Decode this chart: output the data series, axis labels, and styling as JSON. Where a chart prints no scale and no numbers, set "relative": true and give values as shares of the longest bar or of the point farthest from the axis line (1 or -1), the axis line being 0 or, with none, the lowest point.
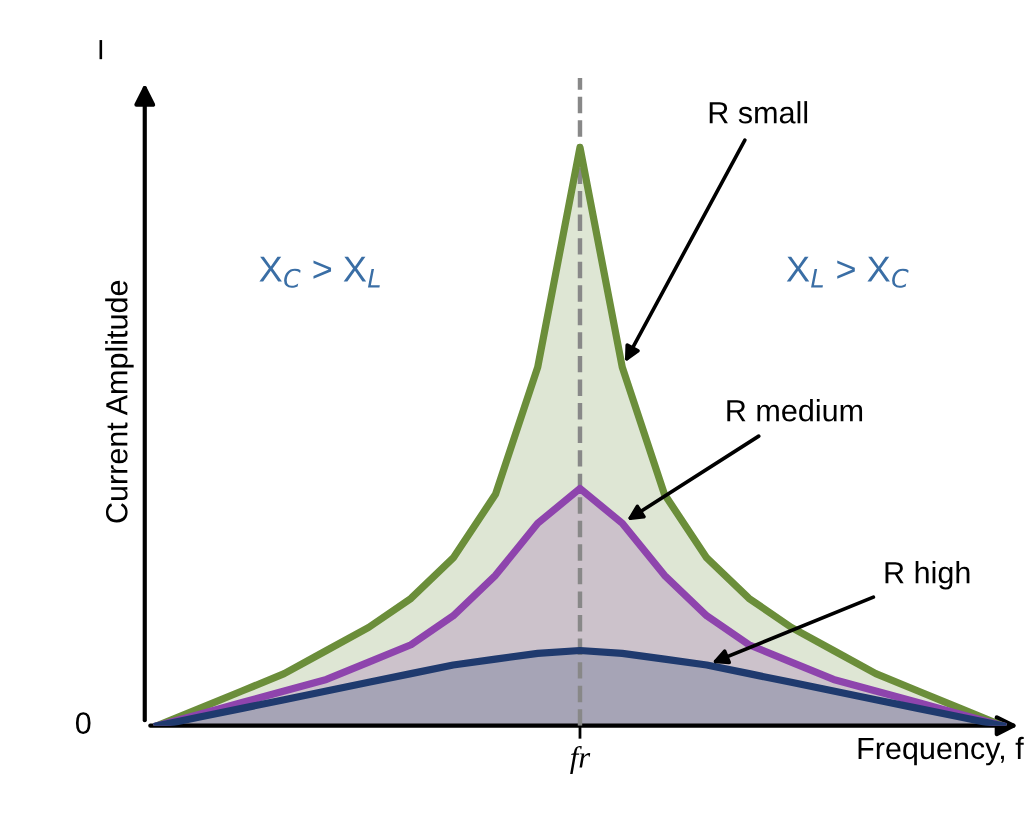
{
  "chart_data": {
    "type": "area",
    "relative": true,
    "xlabel": "Frequency, f",
    "ylabel": "Current Amplitude",
    "categories": [
      null,
      null,
      null,
      null,
      null,
      null,
      null,
      null,
      null,
      null,
      null,
      null,
      null,
      null,
      null,
      null,
      null,
      null,
      null,
      null,
      null
    ],
    "series": [
      {
        "name": "R small",
        "color": "#6b8e3a",
        "values": [
          0,
          0.03,
          0.06,
          0.09,
          0.13,
          0.17,
          0.22,
          0.29,
          0.4,
          0.62,
          1.0,
          0.62,
          0.4,
          0.29,
          0.22,
          0.17,
          0.13,
          0.09,
          0.06,
          0.03,
          0
        ]
      },
      {
        "name": "R medium",
        "color": "#8e44ad",
        "values": [
          0,
          0.02,
          0.04,
          0.06,
          0.08,
          0.11,
          0.14,
          0.19,
          0.26,
          0.35,
          0.41,
          0.35,
          0.26,
          0.19,
          0.14,
          0.11,
          0.08,
          0.06,
          0.04,
          0.02,
          0
        ]
      },
      {
        "name": "R high",
        "color": "#1f3a6e",
        "values": [
          0,
          0.015,
          0.03,
          0.045,
          0.06,
          0.075,
          0.09,
          0.105,
          0.115,
          0.125,
          0.13,
          0.125,
          0.115,
          0.105,
          0.09,
          0.075,
          0.06,
          0.045,
          0.03,
          0.015,
          0
        ]
      }
    ],
    "annotations": [
      "X$_{C}$ > X$_{L}$",
      "X$_{L}$ > X$_{C}$",
      "I",
      "0",
      "fr"
    ],
    "legend": false
  }
}
